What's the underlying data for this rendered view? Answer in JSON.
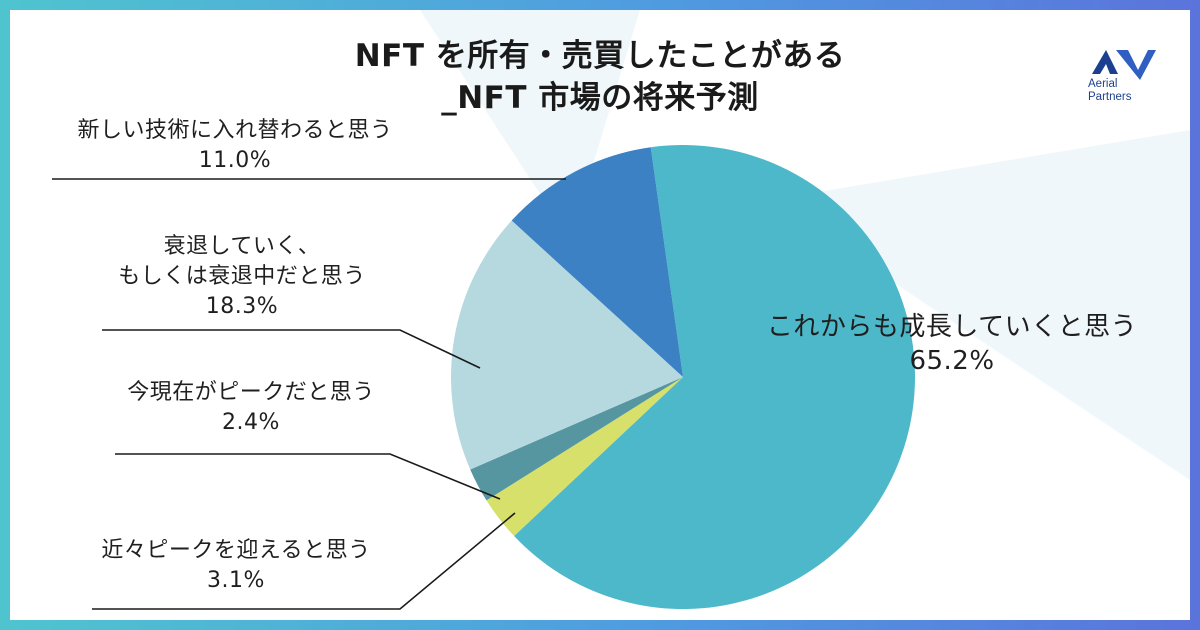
{
  "title_line1": "NFT を所有・売買したことがある",
  "title_line2": "_NFT 市場の将来予測",
  "logo": {
    "line1": "Aerial",
    "line2": "Partners",
    "color": "#1d3f8f"
  },
  "chart_data": {
    "type": "pie",
    "title": "NFT を所有・売買したことがある_NFT 市場の将来予測",
    "slices": [
      {
        "label": "これからも成長していくと思う",
        "value": 65.2,
        "value_label": "65.2%",
        "color": "#4db8c9"
      },
      {
        "label": "近々ピークを迎えると思う",
        "value": 3.1,
        "value_label": "3.1%",
        "color": "#d6e06a"
      },
      {
        "label": "今現在がピークだと思う",
        "value": 2.4,
        "value_label": "2.4%",
        "color": "#5596a1"
      },
      {
        "label": "衰退していく、もしくは衰退中だと思う",
        "label_lines": [
          "衰退していく、",
          "もしくは衰退中だと思う"
        ],
        "value": 18.3,
        "value_label": "18.3%",
        "color": "#b6d9e0"
      },
      {
        "label": "新しい技術に入れ替わると思う",
        "value": 11.0,
        "value_label": "11.0%",
        "color": "#3b81c4"
      }
    ]
  }
}
